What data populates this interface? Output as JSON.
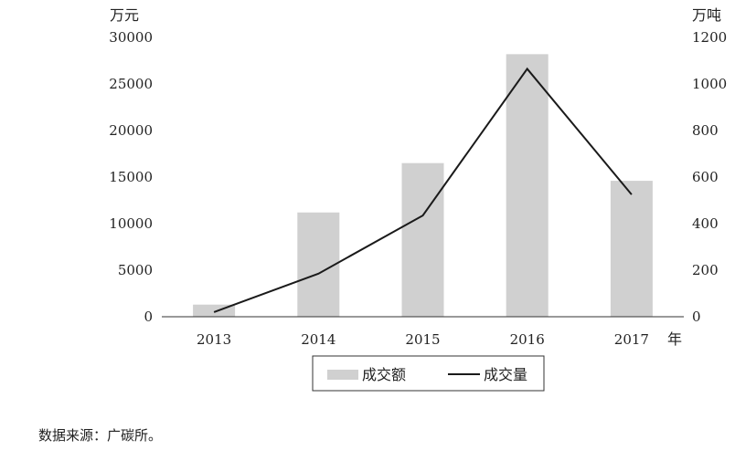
{
  "chart_data": {
    "type": "bar",
    "categories": [
      "2013",
      "2014",
      "2015",
      "2016",
      "2017"
    ],
    "series": [
      {
        "name": "成交额",
        "type": "bar",
        "axis": "left",
        "values": [
          1300,
          11200,
          16500,
          28200,
          14600
        ]
      },
      {
        "name": "成交量",
        "type": "line",
        "axis": "right",
        "values": [
          20,
          185,
          435,
          1065,
          525
        ]
      }
    ],
    "y_left": {
      "unit": "万元",
      "range": [
        0,
        30000
      ],
      "ticks": [
        0,
        5000,
        10000,
        15000,
        20000,
        25000,
        30000
      ]
    },
    "y_right": {
      "unit": "万吨",
      "range": [
        0,
        1200
      ],
      "ticks": [
        0,
        200,
        400,
        600,
        800,
        1000,
        1200
      ]
    },
    "xlabel": "年",
    "legend": {
      "placement": "bottom",
      "entries": [
        "成交额",
        "成交量"
      ]
    },
    "grid": false,
    "colors": {
      "bar": "#d0d0d0",
      "line": "#1a1a1a",
      "axis": "#333333"
    }
  },
  "source_note": "数据来源：广碳所。"
}
